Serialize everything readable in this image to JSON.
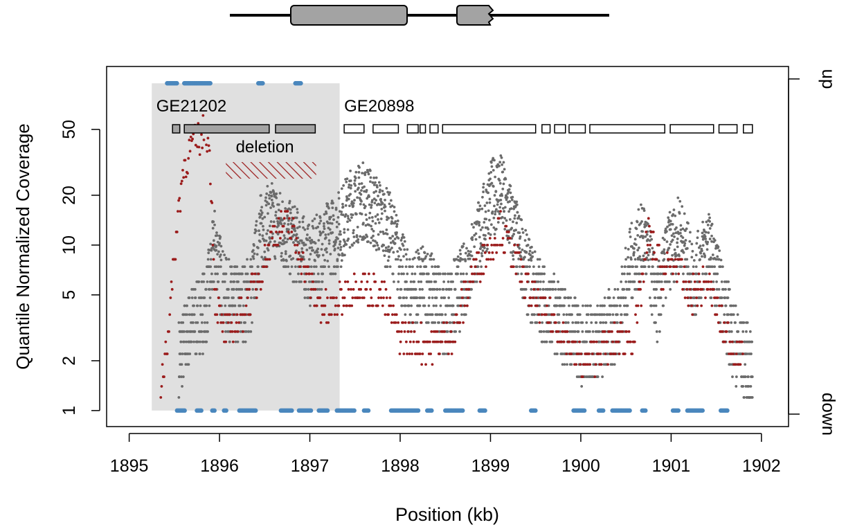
{
  "chart_data": {
    "type": "scatter",
    "title": "",
    "xlabel": "Position (kb)",
    "ylabel": "Quantile Normalized Coverage",
    "x_scale": "linear",
    "y_scale": "log",
    "xlim": [
      1894.75,
      1902.3
    ],
    "ylim": [
      0.8,
      120
    ],
    "x_ticks": [
      1895,
      1896,
      1897,
      1898,
      1899,
      1900,
      1901,
      1902
    ],
    "y_ticks": [
      1,
      2,
      5,
      10,
      20,
      50
    ],
    "x_tick_labels": [
      "1895",
      "1896",
      "1897",
      "1898",
      "1899",
      "1900",
      "1901",
      "1902"
    ],
    "y_tick_labels": [
      "1",
      "2",
      "5",
      "10",
      "20",
      "50"
    ],
    "right_axis_labels": [
      "up",
      "down"
    ],
    "grid": false,
    "colors": {
      "gray_series": "#6b6b6b",
      "red_series": "#9b1c1c",
      "blue_markers": "#4a87bd",
      "shade": "#e0e0e0",
      "gene_fill": "#a3a3a3"
    },
    "shaded_region": {
      "x": [
        1895.25,
        1897.33
      ]
    },
    "annotations": [
      {
        "text": "GE21202",
        "x": 1895.3,
        "y": 82
      },
      {
        "text": "GE20898",
        "x": 1897.38,
        "y": 82
      },
      {
        "text": "deletion",
        "x": 1896.18,
        "y": 52
      }
    ],
    "deletion_hatch": {
      "x": [
        1896.07,
        1897.07
      ]
    },
    "gene_GE21202_exons": [
      [
        1895.48,
        1895.56
      ],
      [
        1895.61,
        1896.55
      ],
      [
        1896.62,
        1897.06
      ]
    ],
    "gene_GE20898_exons": [
      [
        1897.38,
        1897.6
      ],
      [
        1897.7,
        1897.98
      ],
      [
        1898.08,
        1898.2
      ],
      [
        1898.22,
        1898.28
      ],
      [
        1898.33,
        1898.42
      ],
      [
        1898.47,
        1899.5
      ],
      [
        1899.57,
        1899.66
      ],
      [
        1899.71,
        1899.83
      ],
      [
        1899.87,
        1900.05
      ],
      [
        1900.1,
        1900.93
      ],
      [
        1900.99,
        1901.47
      ],
      [
        1901.53,
        1901.73
      ],
      [
        1901.8,
        1901.9
      ]
    ],
    "gray_profile": {
      "x": [
        1895.55,
        1895.7,
        1895.85,
        1895.95,
        1896.05,
        1896.2,
        1896.35,
        1896.45,
        1896.6,
        1896.75,
        1896.9,
        1897.0,
        1897.15,
        1897.3,
        1897.45,
        1897.6,
        1897.75,
        1897.9,
        1898.1,
        1898.3,
        1898.5,
        1898.7,
        1898.85,
        1899.0,
        1899.1,
        1899.25,
        1899.4,
        1899.6,
        1899.8,
        1900.0,
        1900.2,
        1900.4,
        1900.55,
        1900.7,
        1900.85,
        1900.95,
        1901.1,
        1901.25,
        1901.4,
        1901.55,
        1901.7,
        1901.9
      ],
      "y": [
        2.5,
        4,
        5,
        12,
        6,
        5,
        6,
        14,
        17,
        13,
        11,
        9,
        12,
        14,
        20,
        22,
        18,
        14,
        6,
        7,
        4.5,
        7,
        12,
        22,
        26,
        15,
        8,
        5,
        4,
        3,
        3,
        4,
        9,
        13,
        5,
        10,
        14,
        7,
        12,
        6,
        3,
        2
      ]
    },
    "red_profile": {
      "x": [
        1895.35,
        1895.45,
        1895.55,
        1895.6,
        1895.7,
        1895.8,
        1895.85,
        1895.9,
        1895.95,
        1896.05,
        1896.2,
        1896.4,
        1896.6,
        1896.75,
        1896.9,
        1897.05,
        1897.2,
        1897.5,
        1897.8,
        1898.0,
        1898.3,
        1898.6,
        1898.8,
        1899.0,
        1899.1,
        1899.25,
        1899.45,
        1899.6,
        1899.8,
        1900.0,
        1900.3,
        1900.6,
        1900.75,
        1900.9,
        1901.05,
        1901.2,
        1901.4,
        1901.6,
        1901.8
      ],
      "y": [
        1.4,
        4,
        18,
        30,
        42,
        46,
        55,
        30,
        5,
        3,
        3.5,
        6,
        12,
        14,
        9,
        5,
        4,
        6,
        5,
        3,
        2.5,
        3,
        7,
        10,
        13,
        9,
        5,
        4,
        3,
        2,
        2.5,
        3,
        12,
        7,
        8,
        5,
        6,
        3,
        2
      ]
    },
    "blue_bottom_ranges": [
      [
        1895.53,
        1895.62
      ],
      [
        1895.75,
        1895.8
      ],
      [
        1895.92,
        1895.95
      ],
      [
        1896.05,
        1896.08
      ],
      [
        1896.22,
        1896.41
      ],
      [
        1896.68,
        1896.8
      ],
      [
        1896.88,
        1897.02
      ],
      [
        1897.1,
        1897.2
      ],
      [
        1897.3,
        1897.5
      ],
      [
        1897.6,
        1897.65
      ],
      [
        1897.9,
        1898.2
      ],
      [
        1898.3,
        1898.35
      ],
      [
        1898.5,
        1898.7
      ],
      [
        1898.88,
        1898.95
      ],
      [
        1899.45,
        1899.5
      ],
      [
        1899.92,
        1900.05
      ],
      [
        1900.2,
        1900.25
      ],
      [
        1900.35,
        1900.55
      ],
      [
        1900.68,
        1900.72
      ],
      [
        1901.02,
        1901.08
      ],
      [
        1901.18,
        1901.35
      ],
      [
        1901.55,
        1901.63
      ]
    ],
    "blue_top_ranges": [
      [
        1895.42,
        1895.53
      ],
      [
        1895.61,
        1895.9
      ],
      [
        1896.43,
        1896.48
      ],
      [
        1896.84,
        1896.9
      ]
    ]
  }
}
